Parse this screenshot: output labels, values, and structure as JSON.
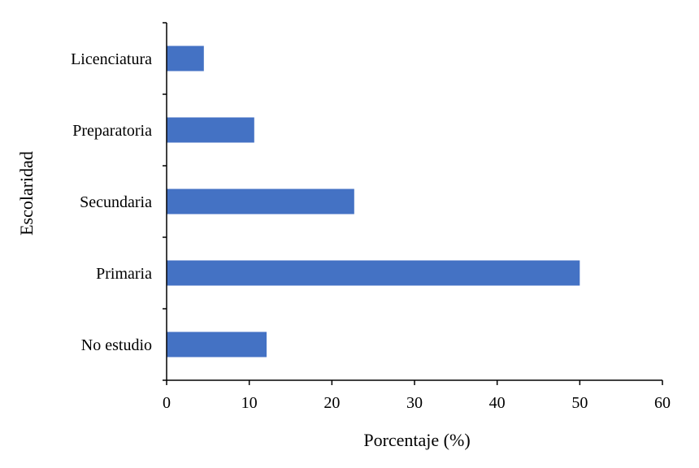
{
  "chart_data": {
    "type": "bar",
    "orientation": "horizontal",
    "categories": [
      "Licenciatura",
      "Preparatoria",
      "Secundaria",
      "Primaria",
      "No estudio"
    ],
    "values": [
      4.5,
      10.6,
      22.7,
      50.0,
      12.1
    ],
    "xlabel": "Porcentaje (%)",
    "ylabel": "Escolaridad",
    "xlim": [
      0,
      60
    ],
    "xticks": [
      "0",
      "10",
      "20",
      "30",
      "40",
      "50",
      "60"
    ],
    "grid": false,
    "legend": "none",
    "bar_color": "#4472C4"
  }
}
